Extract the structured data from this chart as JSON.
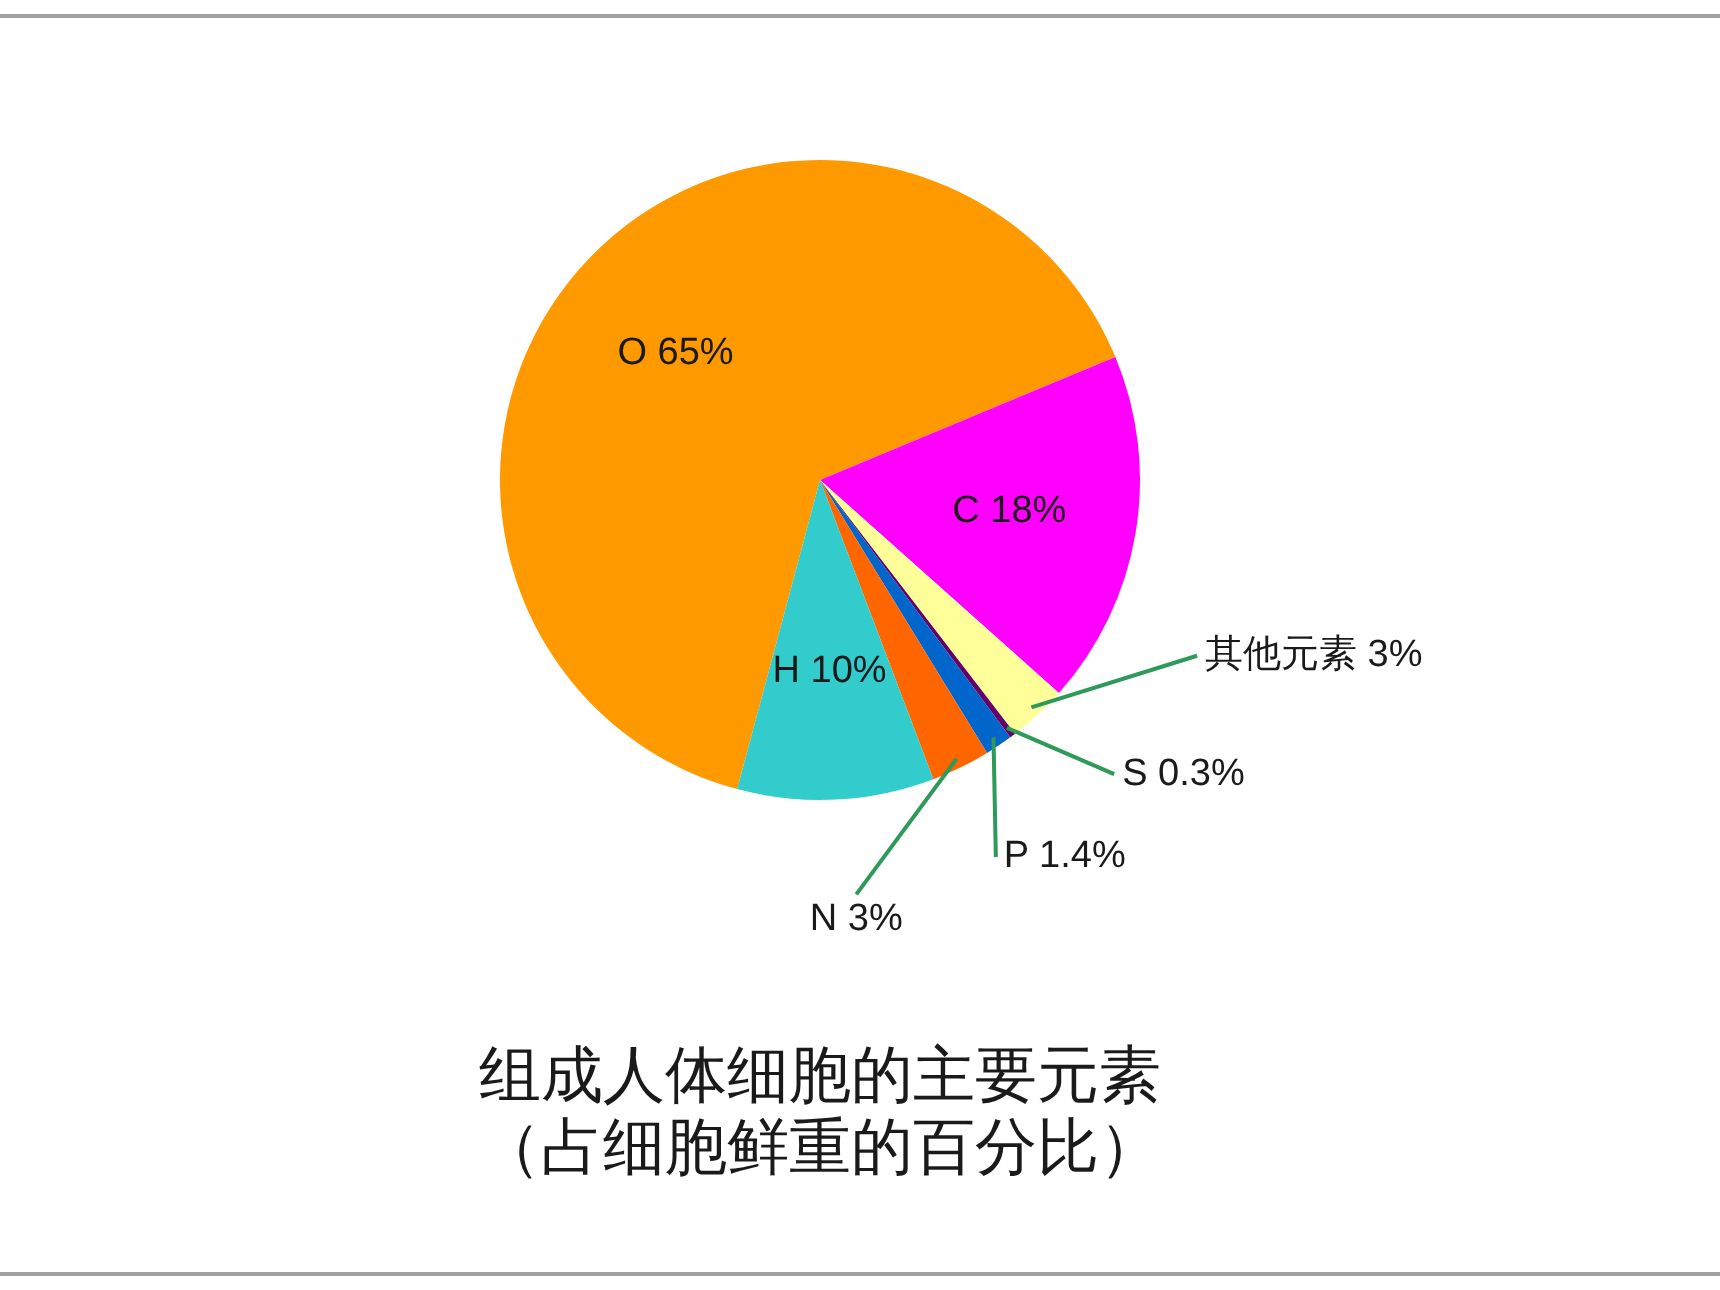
{
  "chart_data": {
    "type": "pie",
    "title": "组成人体细胞的主要元素",
    "subtitle": "（占细胞鲜重的百分比）",
    "categories": [
      "O",
      "C",
      "其他元素",
      "S",
      "P",
      "N",
      "H"
    ],
    "values": [
      65,
      18,
      3,
      0.3,
      1.4,
      3,
      10
    ],
    "value_labels": [
      "65%",
      "18%",
      "3%",
      "0.3%",
      "1.4%",
      "3%",
      "10%"
    ],
    "colors": [
      "#ff9900",
      "#ff00ff",
      "#ffff99",
      "#660066",
      "#0066cc",
      "#ff6600",
      "#33cccc"
    ],
    "legend": false
  }
}
